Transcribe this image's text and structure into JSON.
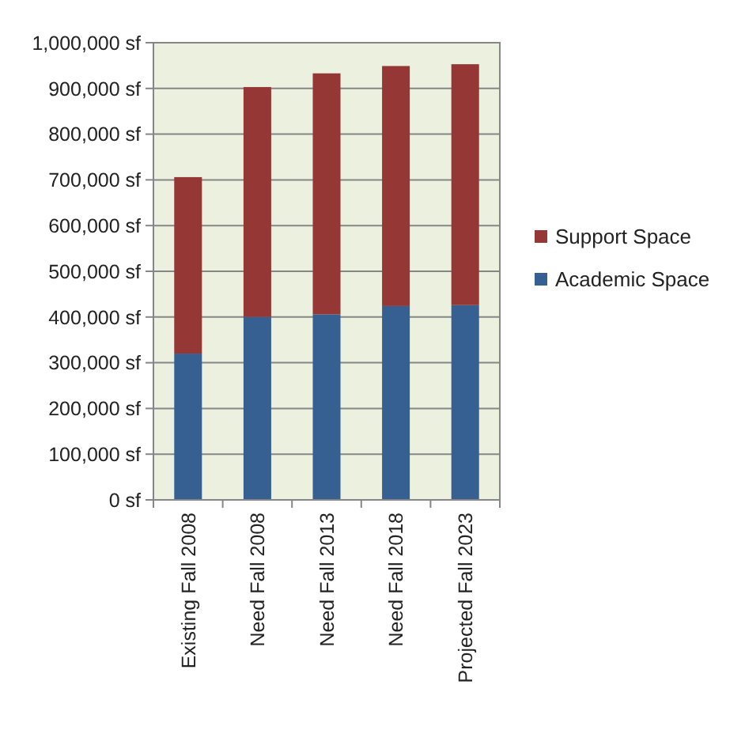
{
  "chart_data": {
    "type": "bar",
    "stacked": true,
    "categories": [
      "Existing Fall 2008",
      "Need Fall 2008",
      "Need Fall 2013",
      "Need Fall 2018",
      "Projected Fall 2023"
    ],
    "series": [
      {
        "name": "Academic Space",
        "color": "#376092",
        "values": [
          320000,
          400000,
          406000,
          424000,
          426000
        ]
      },
      {
        "name": "Support Space",
        "color": "#953735",
        "values": [
          386000,
          503000,
          527000,
          525000,
          527000
        ]
      }
    ],
    "ylim": [
      0,
      1000000
    ],
    "yticks": [
      {
        "value": 0,
        "label": "0 sf"
      },
      {
        "value": 100000,
        "label": "100,000 sf"
      },
      {
        "value": 200000,
        "label": "200,000 sf"
      },
      {
        "value": 300000,
        "label": "300,000 sf"
      },
      {
        "value": 400000,
        "label": "400,000 sf"
      },
      {
        "value": 500000,
        "label": "500,000 sf"
      },
      {
        "value": 600000,
        "label": "600,000 sf"
      },
      {
        "value": 700000,
        "label": "700,000 sf"
      },
      {
        "value": 800000,
        "label": "800,000 sf"
      },
      {
        "value": 900000,
        "label": "900,000 sf"
      },
      {
        "value": 1000000,
        "label": "1,000,000 sf"
      }
    ],
    "grid": "y",
    "legend": "right"
  }
}
